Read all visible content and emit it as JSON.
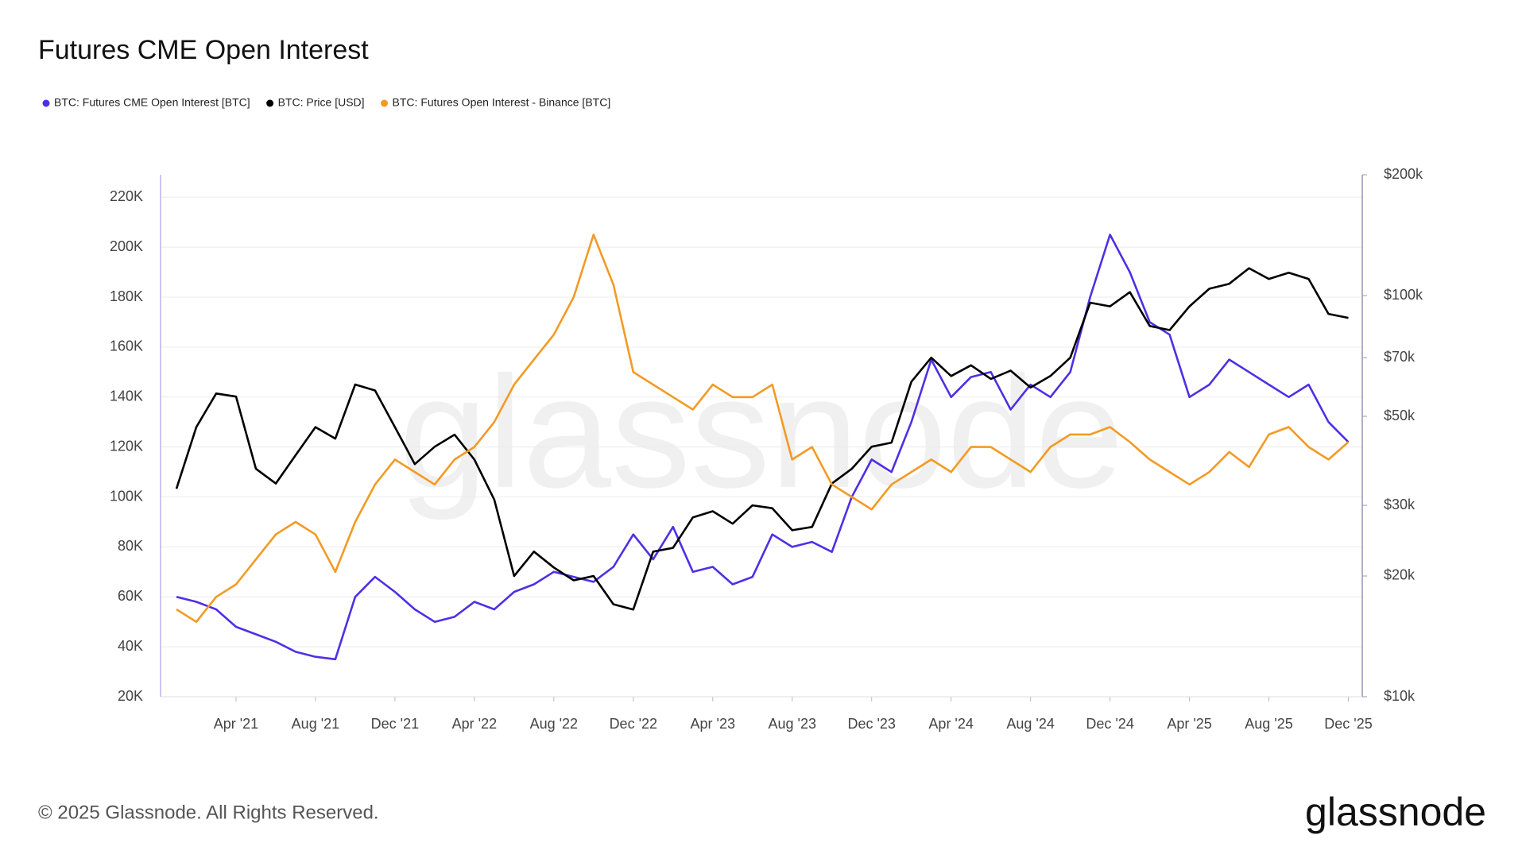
{
  "chart_data": {
    "type": "line",
    "title": "Futures CME Open Interest",
    "watermark": "glassnode",
    "footer": "© 2025 Glassnode. All Rights Reserved.",
    "logo": "glassnode",
    "legend": "top-left",
    "grid": true,
    "y2_log": true,
    "x": [
      "2021-01",
      "2021-02",
      "2021-03",
      "2021-04",
      "2021-05",
      "2021-06",
      "2021-07",
      "2021-08",
      "2021-09",
      "2021-10",
      "2021-11",
      "2021-12",
      "2022-01",
      "2022-02",
      "2022-03",
      "2022-04",
      "2022-05",
      "2022-06",
      "2022-07",
      "2022-08",
      "2022-09",
      "2022-10",
      "2022-11",
      "2022-12",
      "2023-01",
      "2023-02",
      "2023-03",
      "2023-04",
      "2023-05",
      "2023-06",
      "2023-07",
      "2023-08",
      "2023-09",
      "2023-10",
      "2023-11",
      "2023-12",
      "2024-01",
      "2024-02",
      "2024-03",
      "2024-04",
      "2024-05",
      "2024-06",
      "2024-07",
      "2024-08",
      "2024-09",
      "2024-10",
      "2024-11",
      "2024-12",
      "2025-01",
      "2025-02",
      "2025-03",
      "2025-04",
      "2025-05",
      "2025-06",
      "2025-07",
      "2025-08",
      "2025-09",
      "2025-10",
      "2025-11",
      "2025-12"
    ],
    "xticks": [
      {
        "value": "2021-04",
        "label": "Apr '21"
      },
      {
        "value": "2021-08",
        "label": "Aug '21"
      },
      {
        "value": "2021-12",
        "label": "Dec '21"
      },
      {
        "value": "2022-04",
        "label": "Apr '22"
      },
      {
        "value": "2022-08",
        "label": "Aug '22"
      },
      {
        "value": "2022-12",
        "label": "Dec '22"
      },
      {
        "value": "2023-04",
        "label": "Apr '23"
      },
      {
        "value": "2023-08",
        "label": "Aug '23"
      },
      {
        "value": "2023-12",
        "label": "Dec '23"
      },
      {
        "value": "2024-04",
        "label": "Apr '24"
      },
      {
        "value": "2024-08",
        "label": "Aug '24"
      },
      {
        "value": "2024-12",
        "label": "Dec '24"
      },
      {
        "value": "2025-04",
        "label": "Apr '25"
      },
      {
        "value": "2025-08",
        "label": "Aug '25"
      },
      {
        "value": "2025-12",
        "label": "Dec '25"
      }
    ],
    "ylim": [
      20000,
      229000
    ],
    "yticks": [
      {
        "value": 20000,
        "label": "20K"
      },
      {
        "value": 40000,
        "label": "40K"
      },
      {
        "value": 60000,
        "label": "60K"
      },
      {
        "value": 80000,
        "label": "80K"
      },
      {
        "value": 100000,
        "label": "100K"
      },
      {
        "value": 120000,
        "label": "120K"
      },
      {
        "value": 140000,
        "label": "140K"
      },
      {
        "value": 160000,
        "label": "160K"
      },
      {
        "value": 180000,
        "label": "180K"
      },
      {
        "value": 200000,
        "label": "200K"
      },
      {
        "value": 220000,
        "label": "220K"
      }
    ],
    "y2lim": [
      10000,
      200000
    ],
    "y2ticks": [
      {
        "value": 10000,
        "label": "$10k"
      },
      {
        "value": 20000,
        "label": "$20k"
      },
      {
        "value": 30000,
        "label": "$30k"
      },
      {
        "value": 50000,
        "label": "$50k"
      },
      {
        "value": 70000,
        "label": "$70k"
      },
      {
        "value": 100000,
        "label": "$100k"
      },
      {
        "value": 200000,
        "label": "$200k"
      }
    ],
    "series": [
      {
        "name": "BTC: Futures CME Open Interest [BTC]",
        "color": "#4f2fe6",
        "values": [
          60000,
          58000,
          55000,
          48000,
          45000,
          42000,
          38000,
          36000,
          35000,
          60000,
          68000,
          62000,
          55000,
          50000,
          52000,
          58000,
          55000,
          62000,
          65000,
          70000,
          68000,
          66000,
          72000,
          85000,
          75000,
          88000,
          70000,
          72000,
          65000,
          68000,
          85000,
          80000,
          82000,
          78000,
          100000,
          115000,
          110000,
          130000,
          155000,
          140000,
          148000,
          150000,
          135000,
          145000,
          140000,
          150000,
          180000,
          205000,
          190000,
          170000,
          165000,
          140000,
          145000,
          155000,
          150000,
          145000,
          140000,
          145000,
          130000,
          122000
        ]
      },
      {
        "name": "BTC: Price [USD]",
        "color": "#000000",
        "axis": "y2",
        "values": [
          33000,
          47000,
          57000,
          56000,
          37000,
          34000,
          40000,
          47000,
          44000,
          60000,
          58000,
          47000,
          38000,
          42000,
          45000,
          39000,
          31000,
          20000,
          23000,
          21000,
          19500,
          20000,
          17000,
          16500,
          23000,
          23500,
          28000,
          29000,
          27000,
          30000,
          29500,
          26000,
          26500,
          34000,
          37000,
          42000,
          43000,
          61000,
          70000,
          63000,
          67000,
          62000,
          65000,
          59000,
          63000,
          70000,
          96000,
          94000,
          102000,
          84000,
          82000,
          94000,
          104000,
          107000,
          117000,
          110000,
          114000,
          110000,
          90000,
          88000
        ]
      },
      {
        "name": "BTC: Futures Open Interest - Binance [BTC]",
        "color": "#f39a24",
        "values": [
          55000,
          50000,
          60000,
          65000,
          75000,
          85000,
          90000,
          85000,
          70000,
          90000,
          105000,
          115000,
          110000,
          105000,
          115000,
          120000,
          130000,
          145000,
          155000,
          165000,
          180000,
          205000,
          185000,
          150000,
          145000,
          140000,
          135000,
          145000,
          140000,
          140000,
          145000,
          115000,
          120000,
          105000,
          100000,
          95000,
          105000,
          110000,
          115000,
          110000,
          120000,
          120000,
          115000,
          110000,
          120000,
          125000,
          125000,
          128000,
          122000,
          115000,
          110000,
          105000,
          110000,
          118000,
          112000,
          125000,
          128000,
          120000,
          115000,
          122000
        ]
      }
    ]
  }
}
